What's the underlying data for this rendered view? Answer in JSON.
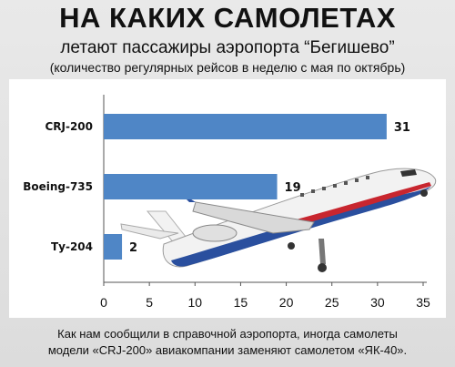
{
  "header": {
    "title": "НА КАКИХ САМОЛЕТАХ",
    "subtitle": "летают пассажиры аэропорта “Бегишево”",
    "note": "(количество регулярных рейсов в неделю с мая по октябрь)"
  },
  "footer": {
    "line1": "Как нам сообщили в справочной аэропорта, иногда самолеты",
    "line2": "модели «CRJ-200» авиакомпании заменяют самолетом «ЯК-40»."
  },
  "colors": {
    "bar": "#4f86c6",
    "plane_body": "#f2f2f2",
    "plane_stripe_blue": "#2a4f9e",
    "plane_stripe_red": "#c8262f"
  },
  "chart_data": {
    "type": "bar",
    "orientation": "horizontal",
    "categories": [
      "CRJ-200",
      "Boeing-735",
      "Ту-204"
    ],
    "values": [
      31,
      19,
      2
    ],
    "xlim": [
      0,
      35
    ],
    "xticks": [
      0,
      5,
      10,
      15,
      20,
      25,
      30,
      35
    ],
    "grid": false,
    "legend": "none"
  }
}
